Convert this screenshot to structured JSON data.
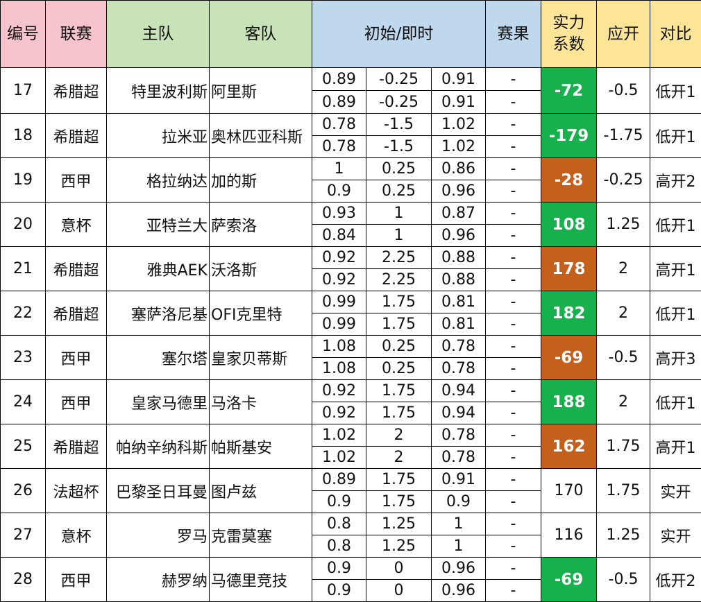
{
  "headers": {
    "no": "编号",
    "league": "联赛",
    "home": "主队",
    "away": "客队",
    "odds": "初始/即时",
    "result": "赛果",
    "strength": "实力系数",
    "open": "应开",
    "compare": "对比"
  },
  "colors": {
    "positive_score": "#16b14c",
    "negative_score": "#c5601c"
  },
  "matches": [
    {
      "no": "17",
      "league": "希腊超",
      "home": "特里波利斯",
      "away": "阿里斯",
      "initial": [
        "0.89",
        "-0.25",
        "0.91"
      ],
      "live": [
        "0.89",
        "-0.25",
        "0.91"
      ],
      "result": [
        "-",
        "-"
      ],
      "strength": "-72",
      "highlight": "green",
      "open": "-0.5",
      "compare": "低开1"
    },
    {
      "no": "18",
      "league": "希腊超",
      "home": "拉米亚",
      "away": "奥林匹亚科斯",
      "initial": [
        "0.78",
        "-1.5",
        "1.02"
      ],
      "live": [
        "0.78",
        "-1.5",
        "1.02"
      ],
      "result": [
        "-",
        "-"
      ],
      "strength": "-179",
      "highlight": "green",
      "open": "-1.75",
      "compare": "低开1"
    },
    {
      "no": "19",
      "league": "西甲",
      "home": "格拉纳达",
      "away": "加的斯",
      "initial": [
        "1",
        "0.25",
        "0.86"
      ],
      "live": [
        "0.9",
        "0.25",
        "0.96"
      ],
      "result": [
        "-",
        "-"
      ],
      "strength": "-28",
      "highlight": "orange",
      "open": "-0.25",
      "compare": "高开2"
    },
    {
      "no": "20",
      "league": "意杯",
      "home": "亚特兰大",
      "away": "萨索洛",
      "initial": [
        "0.93",
        "1",
        "0.87"
      ],
      "live": [
        "0.84",
        "1",
        "0.96"
      ],
      "result": [
        "-",
        "-"
      ],
      "strength": "108",
      "highlight": "green",
      "open": "1.25",
      "compare": "低开1"
    },
    {
      "no": "21",
      "league": "希腊超",
      "home": "雅典AEK",
      "away": "沃洛斯",
      "initial": [
        "0.92",
        "2.25",
        "0.88"
      ],
      "live": [
        "0.92",
        "2.25",
        "0.88"
      ],
      "result": [
        "-",
        "-"
      ],
      "strength": "178",
      "highlight": "orange",
      "open": "2",
      "compare": "高开1"
    },
    {
      "no": "22",
      "league": "希腊超",
      "home": "塞萨洛尼基",
      "away": "OFI克里特",
      "initial": [
        "0.99",
        "1.75",
        "0.81"
      ],
      "live": [
        "0.99",
        "1.75",
        "0.81"
      ],
      "result": [
        "-",
        "-"
      ],
      "strength": "182",
      "highlight": "green",
      "open": "2",
      "compare": "低开1"
    },
    {
      "no": "23",
      "league": "西甲",
      "home": "塞尔塔",
      "away": "皇家贝蒂斯",
      "initial": [
        "1.08",
        "0.25",
        "0.78"
      ],
      "live": [
        "1.08",
        "0.25",
        "0.78"
      ],
      "result": [
        "-",
        "-"
      ],
      "strength": "-69",
      "highlight": "orange",
      "open": "-0.5",
      "compare": "高开3"
    },
    {
      "no": "24",
      "league": "西甲",
      "home": "皇家马德里",
      "away": "马洛卡",
      "initial": [
        "0.92",
        "1.75",
        "0.94"
      ],
      "live": [
        "0.92",
        "1.75",
        "0.94"
      ],
      "result": [
        "-",
        "-"
      ],
      "strength": "188",
      "highlight": "green",
      "open": "2",
      "compare": "低开1"
    },
    {
      "no": "25",
      "league": "希腊超",
      "home": "帕纳辛纳科斯",
      "away": "帕斯基安",
      "initial": [
        "1.02",
        "2",
        "0.78"
      ],
      "live": [
        "1.02",
        "2",
        "0.78"
      ],
      "result": [
        "-",
        "-"
      ],
      "strength": "162",
      "highlight": "orange",
      "open": "1.75",
      "compare": "高开1"
    },
    {
      "no": "26",
      "league": "法超杯",
      "home": "巴黎圣日耳曼",
      "away": "图卢兹",
      "initial": [
        "0.89",
        "1.75",
        "0.91"
      ],
      "live": [
        "0.9",
        "1.75",
        "0.9"
      ],
      "result": [
        "-",
        "-"
      ],
      "strength": "170",
      "highlight": "none",
      "open": "1.75",
      "compare": "实开"
    },
    {
      "no": "27",
      "league": "意杯",
      "home": "罗马",
      "away": "克雷莫塞",
      "initial": [
        "0.8",
        "1.25",
        "1"
      ],
      "live": [
        "0.8",
        "1.25",
        "1"
      ],
      "result": [
        "-",
        "-"
      ],
      "strength": "116",
      "highlight": "none",
      "open": "1.25",
      "compare": "实开"
    },
    {
      "no": "28",
      "league": "西甲",
      "home": "赫罗纳",
      "away": "马德里竞技",
      "initial": [
        "0.9",
        "0",
        "0.96"
      ],
      "live": [
        "0.9",
        "0",
        "0.96"
      ],
      "result": [
        "-",
        "-"
      ],
      "strength": "-69",
      "highlight": "green",
      "open": "-0.5",
      "compare": "低开2"
    }
  ]
}
